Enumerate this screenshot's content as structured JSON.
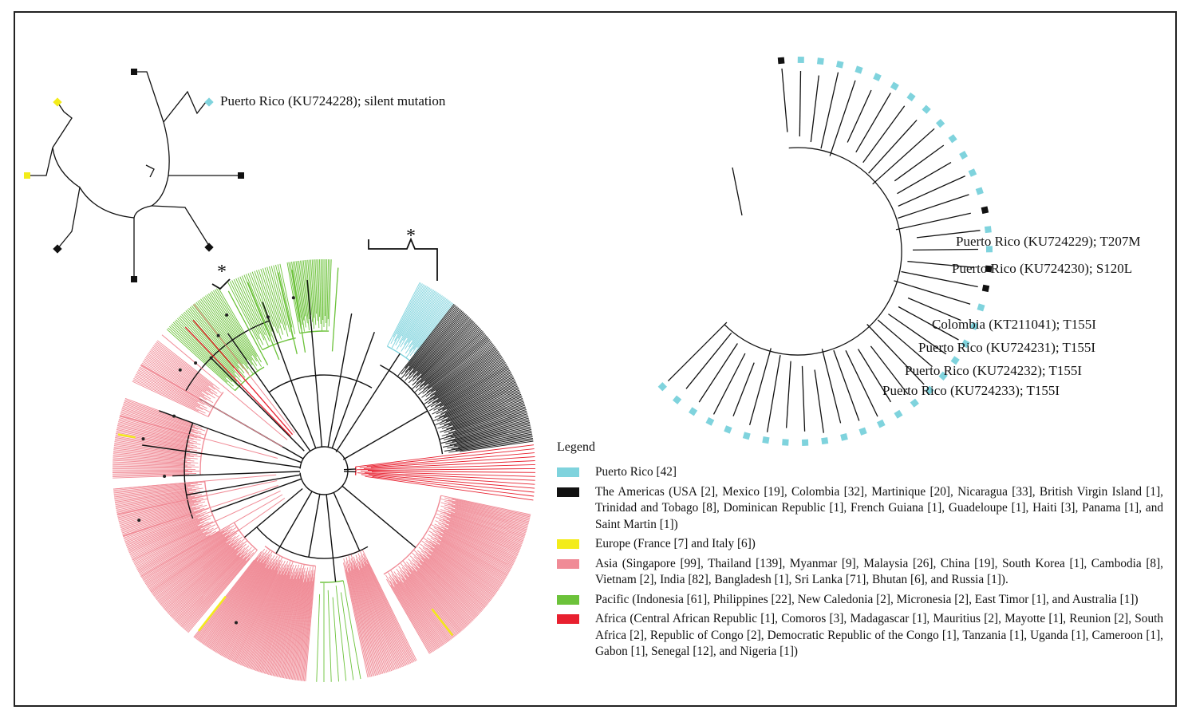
{
  "colors": {
    "puerto_rico": "#7fd3dd",
    "americas": "#111111",
    "europe": "#f3ec1a",
    "asia": "#f08b96",
    "pacific": "#6cc23a",
    "africa": "#e8202f"
  },
  "annotations": {
    "top_left_label": "Puerto Rico (KU724228); silent mutation",
    "star_symbol": "*"
  },
  "right_tree": {
    "labels": [
      "Puerto Rico (KU724229); T207M",
      "Puerto Rico (KU724230); S120L",
      "Colombia (KT211041); T155I",
      "Puerto Rico (KU724231); T155I",
      "Puerto Rico (KU724232); T155I",
      "Puerto Rico (KU724233); T155I"
    ]
  },
  "legend": {
    "title": "Legend",
    "items": [
      {
        "key": "puerto_rico",
        "text": "Puerto Rico [42]"
      },
      {
        "key": "americas",
        "text": "The Americas (USA [2], Mexico [19], Colombia [32], Martinique [20], Nicaragua [33], British Virgin Island [1], Trinidad and Tobago [8], Dominican Republic [1], French Guiana [1], Guadeloupe [1], Haiti [3], Panama [1], and Saint Martin [1])"
      },
      {
        "key": "europe",
        "text": "Europe (France [7] and Italy [6])"
      },
      {
        "key": "asia",
        "text": "Asia (Singapore [99], Thailand [139], Myanmar [9], Malaysia [26], China [19], South Korea [1], Cambodia [8], Vietnam [2], India [82], Bangladesh [1], Sri Lanka [71], Bhutan [6], and Russia [1])."
      },
      {
        "key": "pacific",
        "text": "Pacific (Indonesia [61], Philippines [22], New Caledonia [2], Micronesia [2], East Timor [1], and Australia [1])"
      },
      {
        "key": "africa",
        "text": "Africa (Central African Republic [1], Comoros [3], Madagascar [1], Mauritius [2], Mayotte [1], Reunion [2], South Africa [2], Republic of Congo [2], Democratic Republic of the Congo [1], Tanzania [1], Uganda [1], Cameroon [1], Gabon [1], Senegal [12], and Nigeria [1])"
      }
    ]
  }
}
